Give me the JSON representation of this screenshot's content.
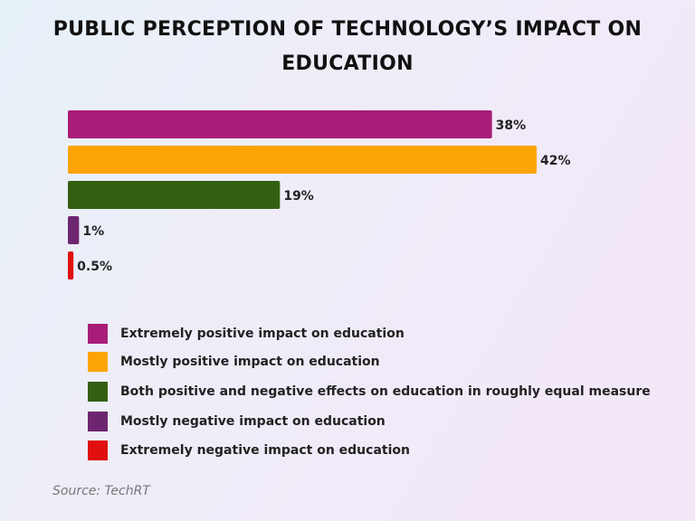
{
  "chart_data": {
    "type": "bar",
    "orientation": "horizontal",
    "title": "PUBLIC PERCEPTION OF TECHNOLOGY’S IMPACT ON EDUCATION",
    "categories": [
      "Extremely positive impact on education",
      "Mostly positive impact on education",
      "Both positive and negative effects on education in roughly equal measure",
      "Mostly negative impact on education",
      "Extremely negative impact on education"
    ],
    "values": [
      38,
      42,
      19,
      1,
      0.5
    ],
    "data_labels": [
      "38%",
      "42%",
      "19%",
      "1%",
      "0.5%"
    ],
    "colors": [
      "#a91d78",
      "#fba403",
      "#335f12",
      "#6e2570",
      "#e01010"
    ],
    "xlim": [
      0,
      42
    ],
    "grid": false,
    "legend": "bottom",
    "source": "Source: TechRT"
  }
}
